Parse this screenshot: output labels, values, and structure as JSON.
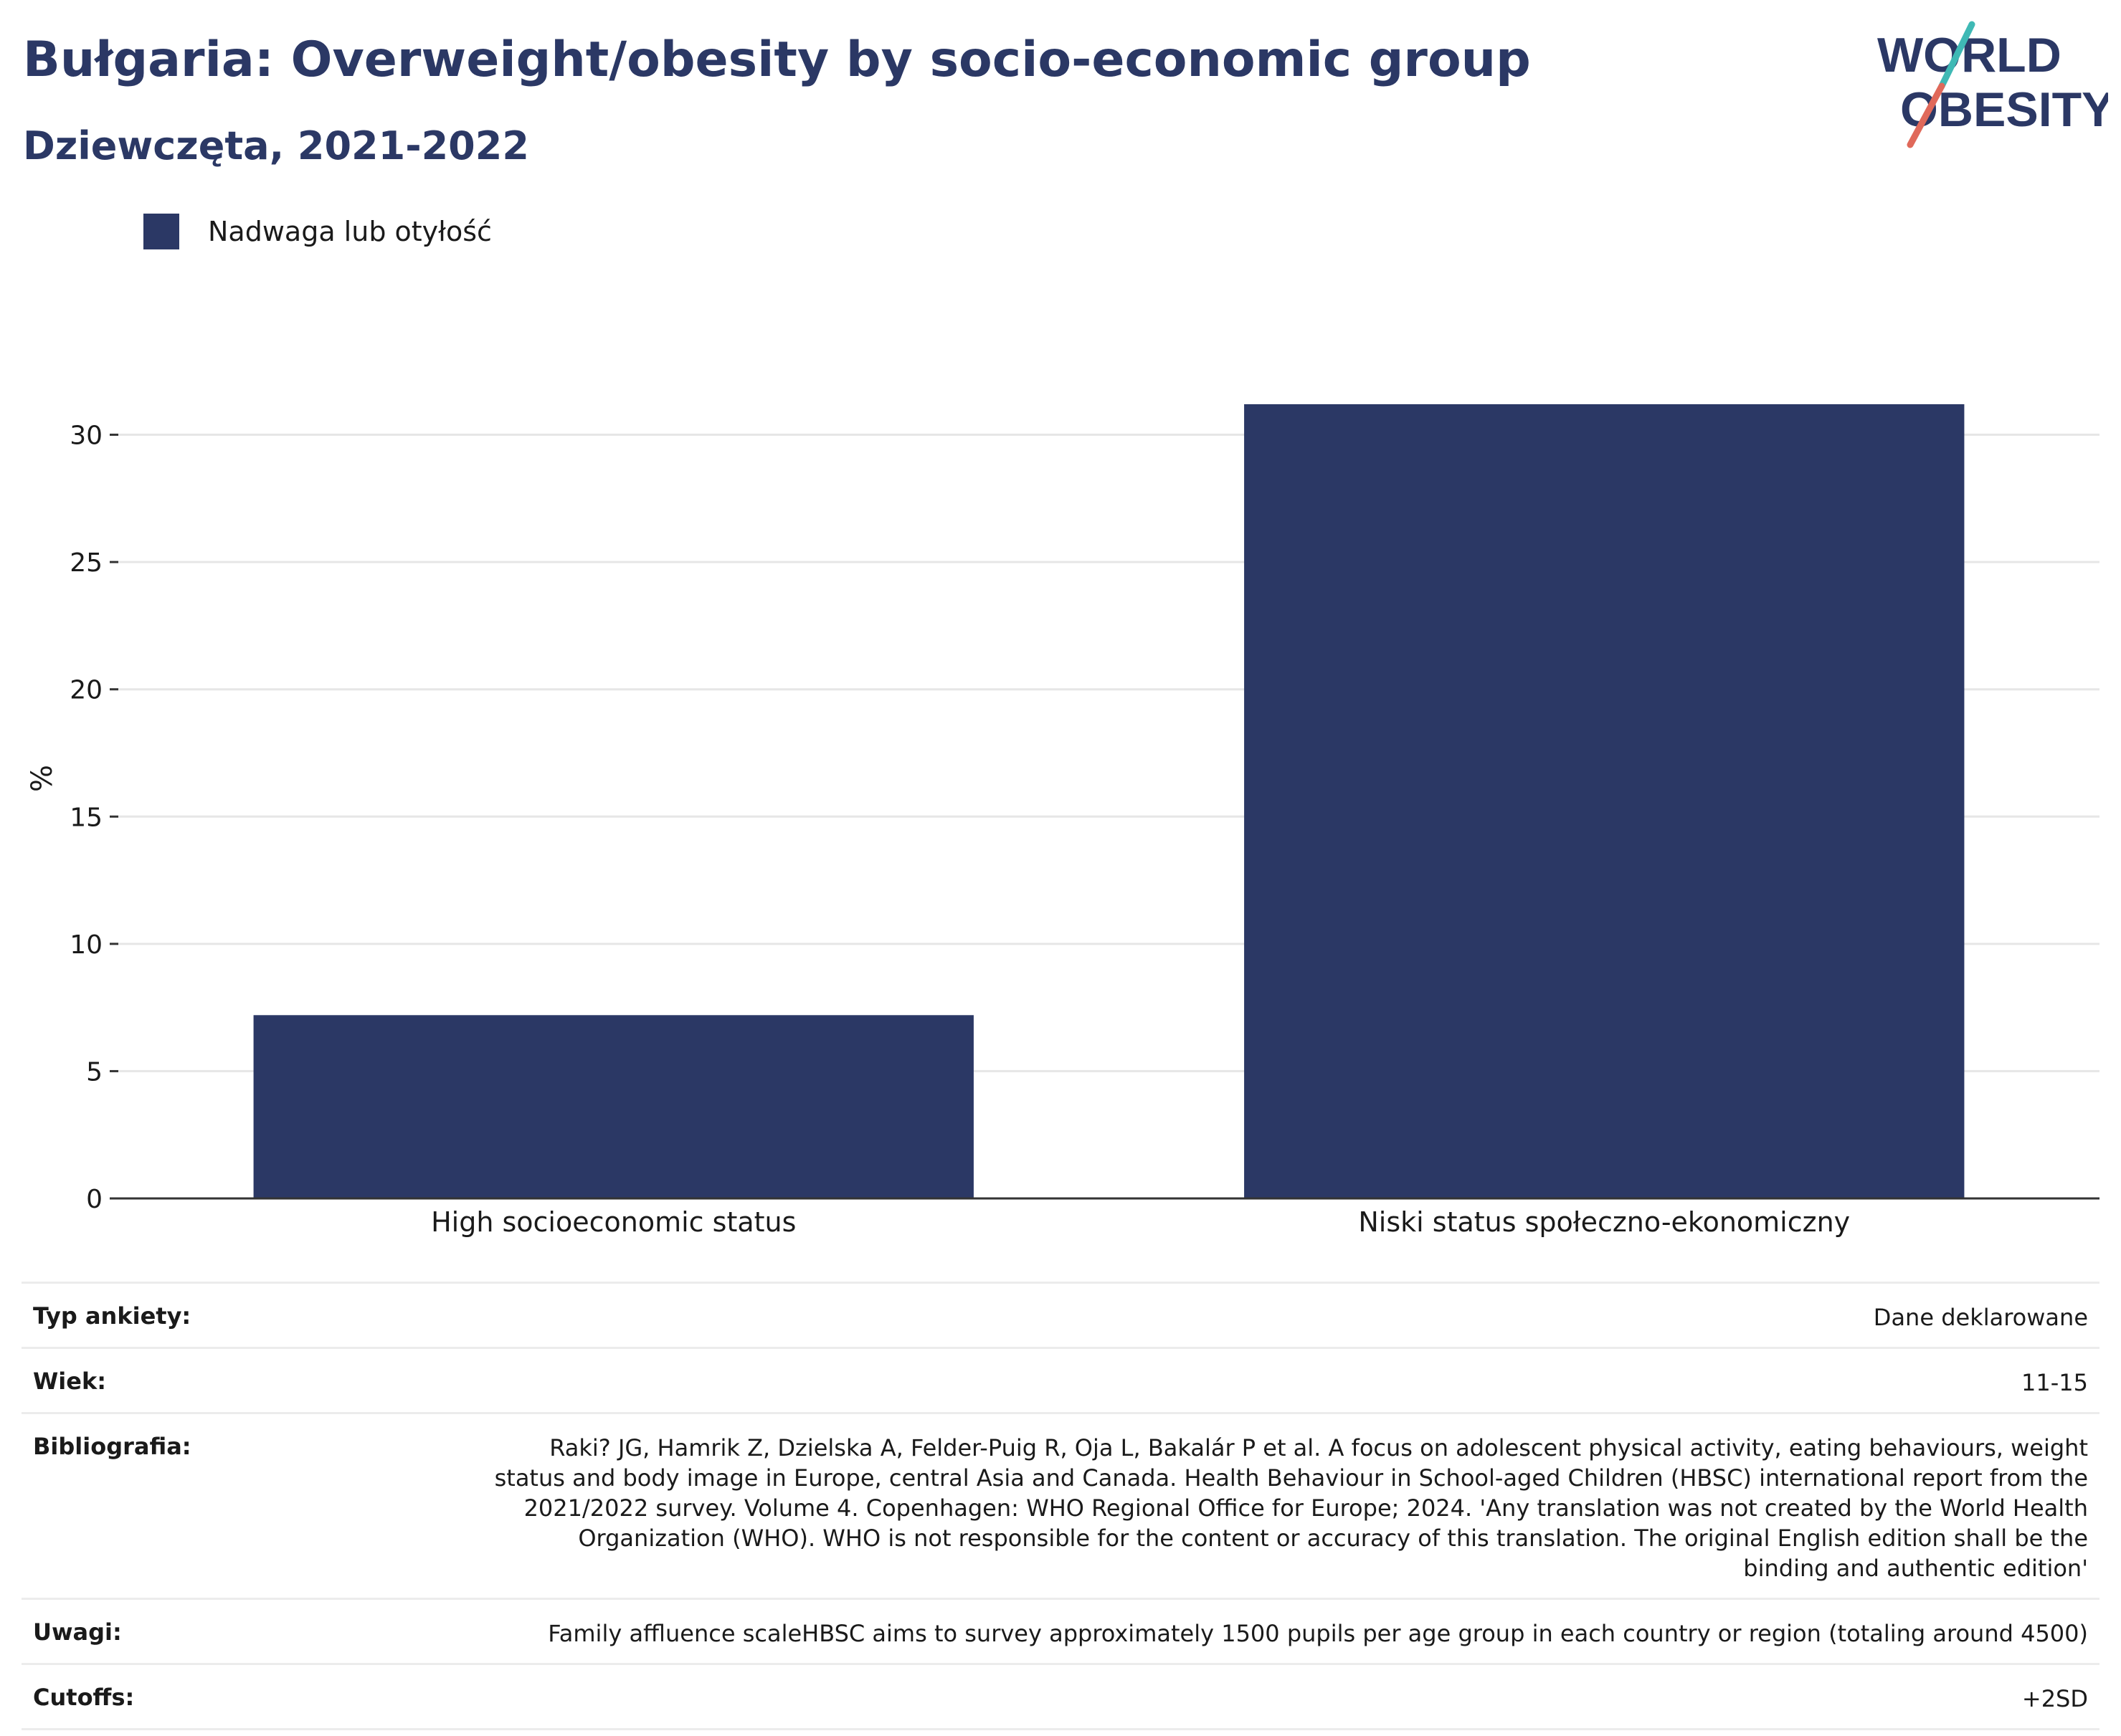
{
  "title": "Bułgaria: Overweight/obesity by socio-economic group",
  "subtitle": "Dziewczęta, 2021-2022",
  "logo": {
    "line1": "WORLD",
    "line2": "OBESITY",
    "colors": {
      "text": "#2b3865",
      "slash_top": "#3fb9b5",
      "slash_bottom": "#e0695a"
    }
  },
  "legend": {
    "label": "Nadwaga lub otyłość",
    "color": "#2b3865"
  },
  "chart_data": {
    "type": "bar",
    "categories": [
      "High socioeconomic status",
      "Niski status społeczno-ekonomiczny"
    ],
    "series": [
      {
        "name": "Nadwaga lub otyłość",
        "values": [
          7.2,
          31.2
        ],
        "color": "#2b3865"
      }
    ],
    "ylabel": "%",
    "ylim": [
      0,
      33
    ],
    "yticks": [
      0,
      5,
      10,
      15,
      20,
      25,
      30
    ],
    "grid": true,
    "legend_position": "top-left"
  },
  "meta": [
    {
      "key": "Typ ankiety:",
      "value": "Dane deklarowane"
    },
    {
      "key": "Wiek:",
      "value": "11-15"
    },
    {
      "key": "Bibliografia:",
      "value": "Raki? JG, Hamrik Z, Dzielska A, Felder-Puig R, Oja L, Bakalár P et al. A focus on adolescent physical activity, eating behaviours, weight status and body image in Europe, central Asia and Canada. Health Behaviour in School-aged Children (HBSC) international report from the 2021/2022 survey. Volume 4. Copenhagen: WHO Regional Office for Europe; 2024. 'Any translation was not created by the World Health Organization (WHO). WHO is not responsible for the content or accuracy of this translation. The original English edition shall be the binding and authentic edition'"
    },
    {
      "key": "Uwagi:",
      "value": "Family affluence scaleHBSC aims to survey approximately 1500 pupils per age group in each country or region (totaling around 4500)"
    },
    {
      "key": "Cutoffs:",
      "value": "+2SD"
    }
  ]
}
